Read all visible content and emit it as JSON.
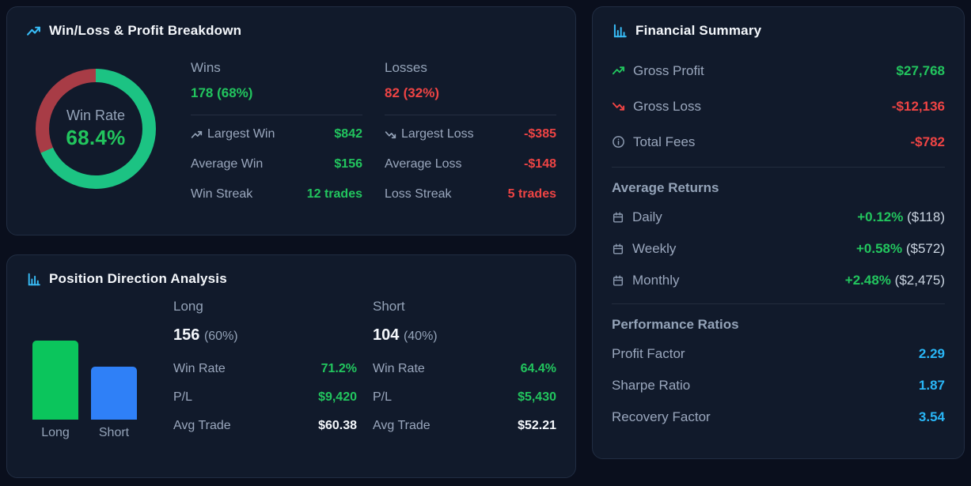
{
  "colors": {
    "green": "#22c55e",
    "red": "#ef4444",
    "cyan": "#29b6f6",
    "donut_win": "#1cc383",
    "donut_loss": "#a83c46",
    "bar_long": "#0bc55c",
    "bar_short": "#2f80f7",
    "panel_bg": "#111a2b",
    "page_bg": "#0a0f1d"
  },
  "winloss_panel": {
    "title": "Win/Loss & Profit Breakdown",
    "donut": {
      "label": "Win Rate",
      "value": "68.4%",
      "win_pct": 68.4
    },
    "wins": {
      "header": "Wins",
      "count": "178 (68%)",
      "stats": [
        {
          "label": "Largest Win",
          "value": "$842"
        },
        {
          "label": "Average Win",
          "value": "$156"
        },
        {
          "label": "Win Streak",
          "value": "12 trades"
        }
      ]
    },
    "losses": {
      "header": "Losses",
      "count": "82 (32%)",
      "stats": [
        {
          "label": "Largest Loss",
          "value": "-$385"
        },
        {
          "label": "Average Loss",
          "value": "-$148"
        },
        {
          "label": "Loss Streak",
          "value": "5 trades"
        }
      ]
    }
  },
  "position_panel": {
    "title": "Position Direction Analysis",
    "bars": [
      {
        "label": "Long",
        "value": 156,
        "color": "#0bc55c"
      },
      {
        "label": "Short",
        "value": 104,
        "color": "#2f80f7"
      }
    ],
    "long": {
      "header": "Long",
      "count": "156",
      "pct": "(60%)",
      "stats": [
        {
          "label": "Win Rate",
          "value": "71.2%"
        },
        {
          "label": "P/L",
          "value": "$9,420"
        },
        {
          "label": "Avg Trade",
          "value": "$60.38"
        }
      ]
    },
    "short": {
      "header": "Short",
      "count": "104",
      "pct": "(40%)",
      "stats": [
        {
          "label": "Win Rate",
          "value": "64.4%"
        },
        {
          "label": "P/L",
          "value": "$5,430"
        },
        {
          "label": "Avg Trade",
          "value": "$52.21"
        }
      ]
    }
  },
  "financial_panel": {
    "title": "Financial Summary",
    "totals": [
      {
        "label": "Gross Profit",
        "value": "$27,768"
      },
      {
        "label": "Gross Loss",
        "value": "-$12,136"
      },
      {
        "label": "Total Fees",
        "value": "-$782"
      }
    ],
    "average_returns": {
      "heading": "Average Returns",
      "rows": [
        {
          "label": "Daily",
          "pct": "+0.12%",
          "amount": "($118)"
        },
        {
          "label": "Weekly",
          "pct": "+0.58%",
          "amount": "($572)"
        },
        {
          "label": "Monthly",
          "pct": "+2.48%",
          "amount": "($2,475)"
        }
      ]
    },
    "performance_ratios": {
      "heading": "Performance Ratios",
      "rows": [
        {
          "label": "Profit Factor",
          "value": "2.29"
        },
        {
          "label": "Sharpe Ratio",
          "value": "1.87"
        },
        {
          "label": "Recovery Factor",
          "value": "3.54"
        }
      ]
    }
  },
  "chart_data": [
    {
      "type": "pie",
      "title": "Win Rate",
      "labels": [
        "Wins",
        "Losses"
      ],
      "values": [
        68.4,
        31.6
      ],
      "center_label": "Win Rate",
      "center_value": "68.4%",
      "colors": [
        "#1cc383",
        "#a83c46"
      ],
      "style": "donut, win slice starts at 12 o'clock clockwise"
    },
    {
      "type": "bar",
      "categories": [
        "Long",
        "Short"
      ],
      "values": [
        156,
        104
      ],
      "colors": [
        "#0bc55c",
        "#2f80f7"
      ],
      "title": "Position Direction Analysis",
      "xlabel": "",
      "ylabel": "",
      "grid": false,
      "axis_labels_shown": false
    }
  ]
}
